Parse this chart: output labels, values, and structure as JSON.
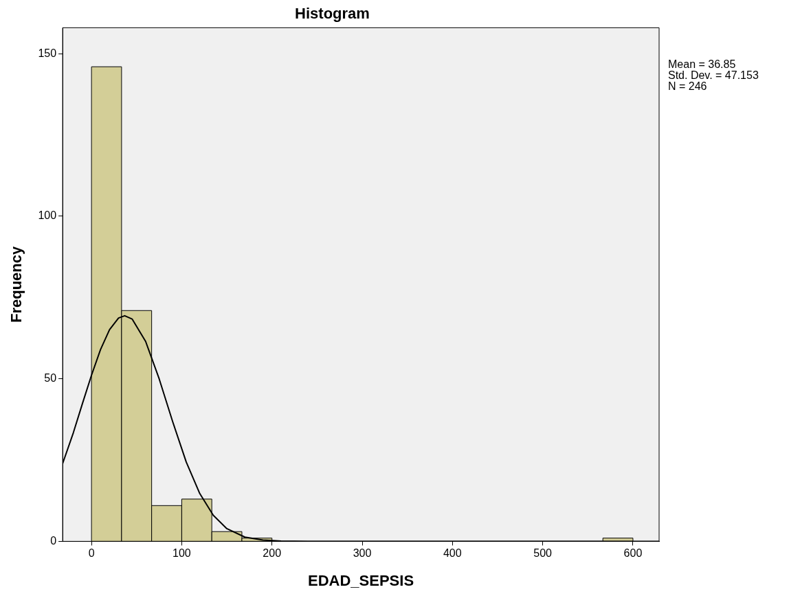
{
  "chart_data": {
    "type": "histogram",
    "title": "Histogram",
    "xlabel": "EDAD_SEPSIS",
    "ylabel": "Frequency",
    "bins": [
      0,
      33.33,
      66.67,
      100,
      133.33,
      166.67,
      200,
      233.33,
      266.67,
      300,
      333.33,
      366.67,
      400,
      433.33,
      466.67,
      500,
      533.33,
      566.67,
      600
    ],
    "values": [
      146,
      71,
      11,
      13,
      3,
      1,
      0,
      0,
      0,
      0,
      0,
      0,
      0,
      0,
      0,
      0,
      0,
      1
    ],
    "color": "#d3ce97",
    "xlim": [
      -32,
      629
    ],
    "ylim": [
      0,
      158
    ],
    "xticks": [
      0,
      100,
      200,
      300,
      400,
      500,
      600
    ],
    "yticks": [
      0,
      50,
      100,
      150
    ],
    "grid": false,
    "legend": false,
    "marker": "none",
    "annotations": [
      "Mean = 36.85",
      "Std. Dev. = 47.153",
      "N = 246"
    ],
    "series": [
      {
        "type": "line",
        "color": "#000000",
        "x": [
          -32,
          -20,
          -10,
          0,
          10,
          20,
          30,
          36.85,
          45,
          60,
          75,
          90,
          105,
          120,
          135,
          150,
          170,
          190,
          210,
          240,
          300,
          400,
          500,
          629
        ],
        "values": [
          23.9,
          33.5,
          42.4,
          51.1,
          59.0,
          65.1,
          68.7,
          69.4,
          68.4,
          61.5,
          50.0,
          36.8,
          24.4,
          14.7,
          8.0,
          3.9,
          1.3,
          0.4,
          0.1,
          0,
          0,
          0,
          0,
          0
        ]
      }
    ]
  }
}
